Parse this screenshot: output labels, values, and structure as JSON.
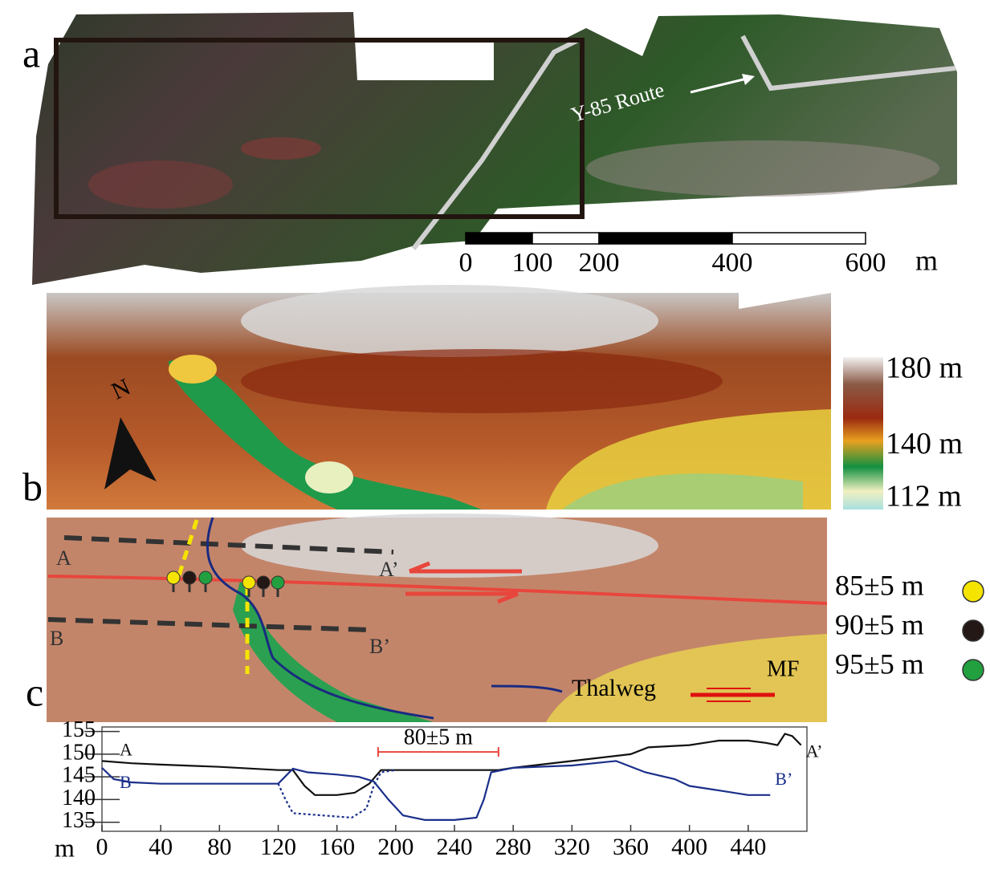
{
  "panel_a": {
    "label": "a",
    "route_label": "Y-85 Route",
    "scale_bar": {
      "ticks": [
        0,
        100,
        200,
        400,
        600
      ],
      "unit": "m"
    }
  },
  "panel_b": {
    "label": "b",
    "north": "N",
    "colorbar": {
      "lim": [
        112,
        180
      ],
      "ticks": [
        {
          "value": 180,
          "label": "180 m"
        },
        {
          "value": 140,
          "label": "140 m"
        },
        {
          "value": 112,
          "label": "112 m"
        }
      ]
    }
  },
  "panel_c": {
    "label": "c",
    "profile_labels": [
      "A",
      "A’",
      "B",
      "B’"
    ],
    "thalweg": "Thalweg",
    "fault": "MF",
    "legend": [
      {
        "label": "85±5 m",
        "color": "#f5e400"
      },
      {
        "label": "90±5 m",
        "color": "#231815"
      },
      {
        "label": "95±5 m",
        "color": "#22a040"
      }
    ]
  },
  "chart_data": {
    "type": "line",
    "y_unit": "m",
    "xlim": [
      0,
      480
    ],
    "ylim": [
      133,
      156
    ],
    "xticks": [
      0,
      40,
      80,
      120,
      160,
      200,
      240,
      280,
      320,
      360,
      400,
      440
    ],
    "yticks": [
      135,
      140,
      145,
      150,
      155
    ],
    "annotation": {
      "label": "80±5 m",
      "x": [
        188,
        270
      ],
      "y": 150.5
    },
    "series": [
      {
        "start_label": "A",
        "end_label": "A’",
        "color": "#111111",
        "dashed": false,
        "x": [
          0,
          20,
          40,
          80,
          120,
          130,
          138,
          145,
          160,
          172,
          182,
          190,
          200,
          240,
          270,
          280,
          320,
          360,
          372,
          400,
          420,
          440,
          452,
          460,
          465,
          470,
          476
        ],
        "values": [
          148.5,
          148,
          147.7,
          147.2,
          146.5,
          146.5,
          143,
          141,
          141,
          141.5,
          143.5,
          146.5,
          146.5,
          146.5,
          146.5,
          147,
          148.5,
          150,
          151.5,
          152,
          153,
          153,
          152.5,
          152,
          154.5,
          154,
          152
        ]
      },
      {
        "start_label": "B",
        "end_label": "B’",
        "color": "#1a2f8a",
        "dashed": false,
        "x": [
          0,
          8,
          20,
          40,
          80,
          120,
          130,
          140,
          160,
          175,
          185,
          195,
          205,
          220,
          240,
          255,
          260,
          265,
          280,
          320,
          350,
          370,
          390,
          400,
          420,
          440,
          455
        ],
        "values": [
          147,
          144.5,
          143.8,
          143.5,
          143.5,
          143.5,
          146.8,
          146,
          145.5,
          145,
          144,
          140,
          136.5,
          135.5,
          135.5,
          136,
          140,
          146,
          147,
          147.5,
          148.5,
          146,
          144.5,
          143,
          142,
          141,
          141
        ]
      },
      {
        "color": "#1a2f8a",
        "dashed": true,
        "x": [
          120,
          125,
          130,
          150,
          170,
          180,
          185,
          190,
          200
        ],
        "values": [
          143.5,
          140,
          137,
          136.5,
          136,
          138,
          143,
          146,
          146.5
        ]
      }
    ]
  }
}
